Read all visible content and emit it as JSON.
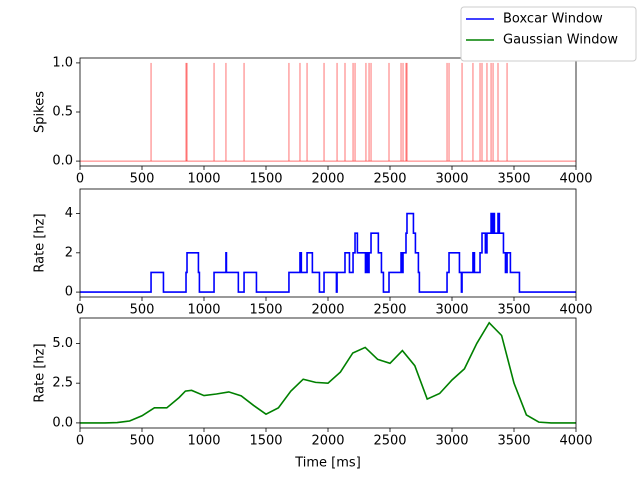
{
  "chart_data": [
    {
      "type": "stem",
      "ylabel": "Spikes",
      "color": "red",
      "alpha": 0.55,
      "x": [
        573,
        855,
        863,
        1081,
        1177,
        1323,
        1685,
        1774,
        1831,
        1968,
        2073,
        2137,
        2202,
        2218,
        2306,
        2331,
        2347,
        2492,
        2589,
        2605,
        2629,
        2637,
        2960,
        2976,
        3081,
        3169,
        3226,
        3242,
        3282,
        3315,
        3331,
        3371,
        3444
      ],
      "values": [
        1,
        1,
        1,
        1,
        1,
        1,
        1,
        1,
        1,
        1,
        1,
        1,
        1,
        1,
        1,
        1,
        1,
        1,
        1,
        1,
        1,
        1,
        1,
        1,
        1,
        1,
        1,
        1,
        1,
        1,
        1,
        1,
        1
      ],
      "xlim": [
        0,
        4000
      ],
      "xticks": [
        0,
        500,
        1000,
        1500,
        2000,
        2500,
        3000,
        3500,
        4000
      ],
      "ylim": [
        -0.05,
        1.05
      ],
      "yticks": [
        {
          "value": 0,
          "label": "0.0"
        },
        {
          "value": 0.5,
          "label": "0.5"
        },
        {
          "value": 1,
          "label": "1.0"
        }
      ]
    },
    {
      "type": "line",
      "ylabel": "Rate [hz]",
      "legend": "figure upper right",
      "series": [
        {
          "name": "Boxcar Window",
          "color": "blue",
          "step": "post",
          "x": [
            0,
            573,
            673,
            855,
            863,
            955,
            963,
            1081,
            1177,
            1181,
            1277,
            1323,
            1423,
            1685,
            1774,
            1785,
            1831,
            1874,
            1931,
            1968,
            2068,
            2073,
            2137,
            2173,
            2202,
            2218,
            2237,
            2302,
            2306,
            2318,
            2331,
            2347,
            2406,
            2431,
            2447,
            2492,
            2589,
            2592,
            2605,
            2629,
            2637,
            2689,
            2705,
            2729,
            2737,
            2960,
            2976,
            3060,
            3076,
            3081,
            3169,
            3181,
            3226,
            3242,
            3269,
            3282,
            3315,
            3326,
            3331,
            3342,
            3371,
            3382,
            3415,
            3431,
            3444,
            3471,
            3544,
            4000
          ],
          "values": [
            0,
            1,
            0,
            1,
            2,
            1,
            0,
            1,
            2,
            1,
            0,
            1,
            0,
            1,
            2,
            1,
            2,
            1,
            0,
            1,
            0,
            1,
            2,
            1,
            2,
            3,
            2,
            1,
            2,
            1,
            2,
            3,
            2,
            1,
            0,
            1,
            2,
            1,
            2,
            3,
            4,
            3,
            2,
            1,
            0,
            1,
            2,
            1,
            0,
            1,
            2,
            1,
            2,
            3,
            2,
            3,
            4,
            3,
            4,
            3,
            4,
            3,
            2,
            1,
            2,
            1,
            0,
            0
          ]
        }
      ],
      "xlim": [
        0,
        4000
      ],
      "xticks": [
        0,
        500,
        1000,
        1500,
        2000,
        2500,
        3000,
        3500,
        4000
      ],
      "ylim": [
        -0.25,
        5.25
      ],
      "yticks": [
        0,
        2,
        4
      ]
    },
    {
      "type": "line",
      "ylabel": "Rate [hz]",
      "xlabel": "Time [ms]",
      "legend": "figure upper right",
      "series": [
        {
          "name": "Gaussian Window",
          "color": "green",
          "x": [
            0,
            100,
            200,
            300,
            400,
            500,
            600,
            700,
            800,
            850,
            900,
            1000,
            1100,
            1200,
            1300,
            1400,
            1500,
            1600,
            1700,
            1800,
            1900,
            2000,
            2100,
            2200,
            2300,
            2400,
            2500,
            2600,
            2700,
            2800,
            2900,
            3000,
            3100,
            3200,
            3300,
            3400,
            3500,
            3600,
            3700,
            3800,
            3900,
            4000
          ],
          "values": [
            0,
            0,
            0,
            0.02,
            0.12,
            0.45,
            0.95,
            0.95,
            1.6,
            2.0,
            2.05,
            1.72,
            1.82,
            1.95,
            1.7,
            1.1,
            0.55,
            0.95,
            2.0,
            2.75,
            2.55,
            2.5,
            3.2,
            4.4,
            4.75,
            4.0,
            3.75,
            4.55,
            3.6,
            1.5,
            1.85,
            2.7,
            3.4,
            5.0,
            6.3,
            5.5,
            2.5,
            0.5,
            0.05,
            0,
            0,
            0
          ]
        }
      ],
      "xlim": [
        0,
        4000
      ],
      "xticks": [
        0,
        500,
        1000,
        1500,
        2000,
        2500,
        3000,
        3500,
        4000
      ],
      "ylim": [
        -0.32,
        6.6
      ],
      "yticks": [
        {
          "value": 0,
          "label": "0.0"
        },
        {
          "value": 2.5,
          "label": "2.5"
        },
        {
          "value": 5,
          "label": "5.0"
        }
      ]
    }
  ]
}
